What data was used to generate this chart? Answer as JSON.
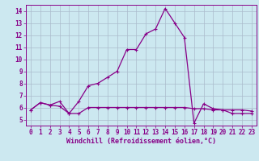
{
  "x": [
    0,
    1,
    2,
    3,
    4,
    5,
    6,
    7,
    8,
    9,
    10,
    11,
    12,
    13,
    14,
    15,
    16,
    17,
    18,
    19,
    20,
    21,
    22,
    23
  ],
  "line1_flat": [
    5.8,
    6.4,
    6.2,
    6.1,
    5.5,
    5.5,
    6.0,
    6.0,
    6.0,
    6.0,
    6.0,
    6.0,
    6.0,
    6.0,
    6.0,
    6.0,
    6.0,
    5.9,
    5.9,
    5.8,
    5.8,
    5.8,
    5.8,
    5.7
  ],
  "line2_peak": [
    5.8,
    6.4,
    6.2,
    6.5,
    5.5,
    6.5,
    7.8,
    8.0,
    8.5,
    9.0,
    10.8,
    10.8,
    12.1,
    12.5,
    14.2,
    13.0,
    11.8,
    4.7,
    6.3,
    5.9,
    5.8,
    5.5,
    5.5,
    5.5
  ],
  "line_color": "#880088",
  "bg_color": "#cce8f0",
  "grid_color": "#aabbcc",
  "xlabel": "Windchill (Refroidissement éolien,°C)",
  "ylim": [
    4.5,
    14.5
  ],
  "xlim": [
    -0.5,
    23.5
  ],
  "yticks": [
    5,
    6,
    7,
    8,
    9,
    10,
    11,
    12,
    13,
    14
  ],
  "xticks": [
    0,
    1,
    2,
    3,
    4,
    5,
    6,
    7,
    8,
    9,
    10,
    11,
    12,
    13,
    14,
    15,
    16,
    17,
    18,
    19,
    20,
    21,
    22,
    23
  ],
  "xlabel_fontsize": 6.0,
  "tick_fontsize": 5.5
}
